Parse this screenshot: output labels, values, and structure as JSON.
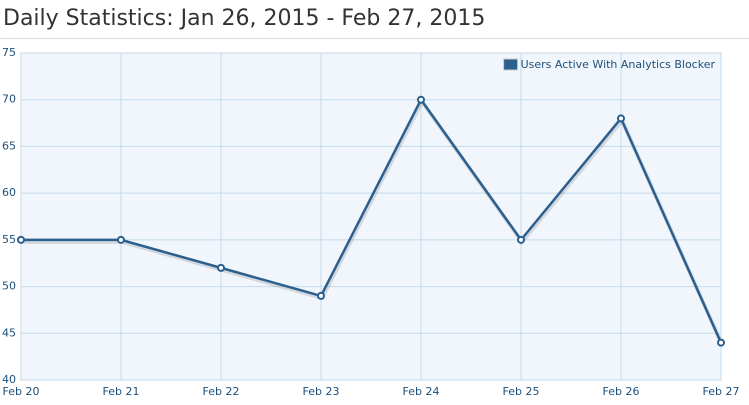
{
  "chart_data": {
    "type": "line",
    "title": "Daily Statistics: Jan 26, 2015 - Feb 27, 2015",
    "categories": [
      "Feb 20",
      "Feb 21",
      "Feb 22",
      "Feb 23",
      "Feb 24",
      "Feb 25",
      "Feb 26",
      "Feb 27"
    ],
    "series": [
      {
        "name": "Users Active With Analytics Blocker",
        "color": "#2b5f8e",
        "values": [
          55,
          55,
          52,
          49,
          70,
          55,
          68,
          44
        ]
      }
    ],
    "ylim": [
      40,
      75
    ],
    "yticks": [
      40,
      45,
      50,
      55,
      60,
      65,
      70,
      75
    ],
    "grid": true,
    "legend": "top-right"
  }
}
